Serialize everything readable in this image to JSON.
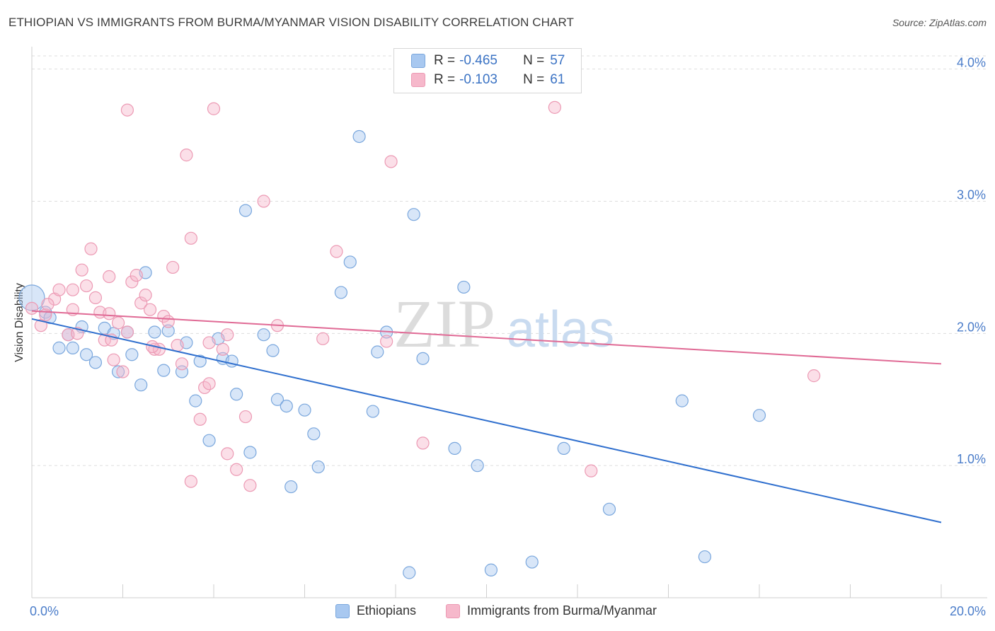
{
  "title": "ETHIOPIAN VS IMMIGRANTS FROM BURMA/MYANMAR VISION DISABILITY CORRELATION CHART",
  "source": "Source: ZipAtlas.com",
  "watermark": {
    "zip": "ZIP",
    "atlas": "atlas"
  },
  "colors": {
    "blue_fill": "#a8c8f0",
    "blue_stroke": "#7aa7dd",
    "blue_line": "#2f6fce",
    "pink_fill": "#f6b8cb",
    "pink_stroke": "#ec9ab4",
    "pink_line": "#e06a95",
    "grid": "#dddddd",
    "tick_label": "#4a7cc9"
  },
  "legend": {
    "rows": [
      {
        "r_key": "R =",
        "r_value": "-0.465",
        "n_key": "N =",
        "n_value": "57"
      },
      {
        "r_key": "R =",
        "r_value": "-0.103",
        "n_key": "N =",
        "n_value": "61"
      }
    ]
  },
  "bottom_legend": {
    "items": [
      {
        "label": "Ethiopians"
      },
      {
        "label": "Immigrants from Burma/Myanmar"
      }
    ]
  },
  "chart_data": {
    "type": "scatter",
    "title": "ETHIOPIAN VS IMMIGRANTS FROM BURMA/MYANMAR VISION DISABILITY CORRELATION CHART",
    "xlabel": "",
    "ylabel": "Vision Disability",
    "xlim": [
      0,
      20
    ],
    "ylim": [
      0,
      4.1
    ],
    "x_tick_labels": [
      "0.0%",
      "20.0%"
    ],
    "y_ticks": [
      1,
      2,
      3,
      4
    ],
    "y_tick_labels": [
      "1.0%",
      "2.0%",
      "3.0%",
      "4.0%"
    ],
    "grid": true,
    "legend_position": "top-center",
    "series": [
      {
        "name": "Ethiopians",
        "r": -0.465,
        "n": 57,
        "trend": {
          "x": [
            0,
            20
          ],
          "y": [
            2.11,
            0.57
          ]
        },
        "points": [
          [
            0.0,
            2.27
          ],
          [
            0.3,
            2.16
          ],
          [
            0.4,
            2.12
          ],
          [
            0.6,
            1.89
          ],
          [
            0.9,
            1.89
          ],
          [
            1.1,
            2.05
          ],
          [
            0.8,
            1.99
          ],
          [
            1.2,
            1.84
          ],
          [
            1.4,
            1.78
          ],
          [
            1.6,
            2.04
          ],
          [
            1.8,
            2.0
          ],
          [
            1.9,
            1.71
          ],
          [
            2.1,
            2.01
          ],
          [
            2.2,
            1.84
          ],
          [
            2.5,
            2.46
          ],
          [
            2.4,
            1.61
          ],
          [
            2.7,
            2.01
          ],
          [
            2.9,
            1.72
          ],
          [
            3.0,
            2.02
          ],
          [
            3.3,
            1.71
          ],
          [
            3.4,
            1.93
          ],
          [
            3.6,
            1.49
          ],
          [
            3.7,
            1.79
          ],
          [
            3.9,
            1.19
          ],
          [
            4.1,
            1.96
          ],
          [
            4.2,
            1.81
          ],
          [
            4.4,
            1.79
          ],
          [
            4.5,
            1.54
          ],
          [
            4.7,
            2.93
          ],
          [
            4.8,
            1.1
          ],
          [
            5.1,
            1.99
          ],
          [
            5.3,
            1.87
          ],
          [
            5.4,
            1.5
          ],
          [
            5.6,
            1.45
          ],
          [
            5.7,
            0.84
          ],
          [
            6.0,
            1.42
          ],
          [
            6.2,
            1.24
          ],
          [
            6.3,
            0.99
          ],
          [
            6.8,
            2.31
          ],
          [
            7.0,
            2.54
          ],
          [
            7.2,
            3.49
          ],
          [
            7.5,
            1.41
          ],
          [
            7.6,
            1.86
          ],
          [
            7.8,
            2.01
          ],
          [
            8.3,
            0.19
          ],
          [
            8.4,
            2.9
          ],
          [
            8.6,
            1.81
          ],
          [
            9.3,
            1.13
          ],
          [
            9.5,
            2.35
          ],
          [
            9.8,
            1.0
          ],
          [
            10.1,
            0.21
          ],
          [
            11.0,
            0.27
          ],
          [
            11.7,
            1.13
          ],
          [
            12.7,
            0.67
          ],
          [
            14.3,
            1.49
          ],
          [
            14.8,
            0.31
          ],
          [
            16.0,
            1.38
          ]
        ]
      },
      {
        "name": "Immigrants from Burma/Myanmar",
        "r": -0.103,
        "n": 61,
        "trend": {
          "x": [
            0,
            20
          ],
          "y": [
            2.17,
            1.77
          ]
        },
        "points": [
          [
            0.0,
            2.19
          ],
          [
            0.2,
            2.06
          ],
          [
            0.3,
            2.14
          ],
          [
            0.5,
            2.26
          ],
          [
            0.6,
            2.33
          ],
          [
            0.8,
            1.99
          ],
          [
            0.9,
            2.33
          ],
          [
            0.9,
            2.18
          ],
          [
            1.0,
            2.0
          ],
          [
            1.1,
            2.48
          ],
          [
            1.2,
            2.36
          ],
          [
            1.3,
            2.64
          ],
          [
            1.4,
            2.27
          ],
          [
            1.5,
            2.16
          ],
          [
            1.6,
            1.95
          ],
          [
            1.7,
            2.15
          ],
          [
            1.7,
            2.43
          ],
          [
            1.8,
            1.8
          ],
          [
            1.9,
            2.08
          ],
          [
            2.0,
            1.71
          ],
          [
            2.1,
            2.01
          ],
          [
            2.1,
            3.69
          ],
          [
            2.2,
            2.39
          ],
          [
            2.3,
            2.44
          ],
          [
            2.4,
            2.23
          ],
          [
            2.5,
            2.29
          ],
          [
            2.6,
            2.18
          ],
          [
            2.7,
            1.88
          ],
          [
            2.8,
            1.88
          ],
          [
            2.9,
            2.13
          ],
          [
            3.0,
            2.09
          ],
          [
            3.1,
            2.5
          ],
          [
            3.2,
            1.91
          ],
          [
            3.3,
            1.77
          ],
          [
            3.4,
            3.35
          ],
          [
            3.5,
            2.72
          ],
          [
            3.5,
            0.88
          ],
          [
            3.7,
            1.35
          ],
          [
            3.8,
            1.59
          ],
          [
            3.9,
            1.93
          ],
          [
            3.9,
            1.62
          ],
          [
            4.0,
            3.7
          ],
          [
            4.2,
            1.88
          ],
          [
            4.3,
            1.09
          ],
          [
            4.3,
            1.99
          ],
          [
            4.5,
            0.97
          ],
          [
            4.7,
            1.37
          ],
          [
            4.8,
            0.85
          ],
          [
            5.1,
            3.0
          ],
          [
            5.4,
            2.06
          ],
          [
            6.4,
            1.96
          ],
          [
            6.7,
            2.62
          ],
          [
            7.8,
            1.94
          ],
          [
            7.9,
            3.3
          ],
          [
            8.6,
            1.17
          ],
          [
            11.5,
            3.71
          ],
          [
            12.3,
            0.96
          ],
          [
            17.2,
            1.68
          ],
          [
            0.35,
            2.22
          ],
          [
            1.75,
            1.95
          ],
          [
            2.65,
            1.9
          ]
        ]
      }
    ]
  }
}
